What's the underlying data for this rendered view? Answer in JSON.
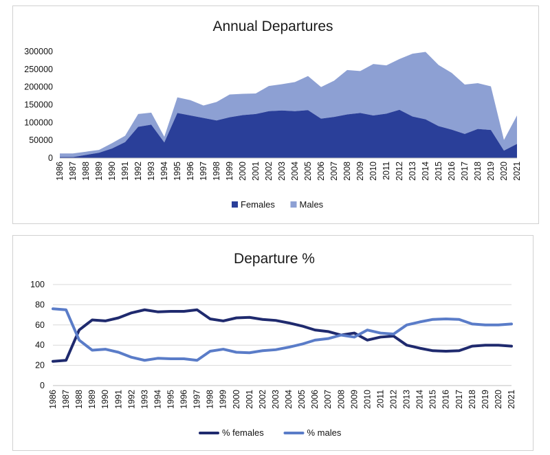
{
  "chart_data": [
    {
      "type": "area",
      "stacked": true,
      "title": "Annual Departures",
      "xlabel": "",
      "ylabel": "",
      "categories": [
        "1986",
        "1987",
        "1988",
        "1989",
        "1990",
        "1991",
        "1992",
        "1993",
        "1994",
        "1995",
        "1996",
        "1997",
        "1998",
        "1999",
        "2000",
        "2001",
        "2002",
        "2003",
        "2004",
        "2005",
        "2006",
        "2007",
        "2008",
        "2009",
        "2010",
        "2011",
        "2012",
        "2013",
        "2014",
        "2015",
        "2016",
        "2017",
        "2018",
        "2019",
        "2020",
        "2021"
      ],
      "yticks": [
        "0",
        "50000",
        "100000",
        "150000",
        "200000",
        "250000",
        "300000"
      ],
      "ylim": [
        0,
        300000
      ],
      "grid": false,
      "legend_position": "bottom",
      "series": [
        {
          "name": "Females",
          "color": "#2a3f99",
          "values": [
            3000,
            3000,
            9000,
            15000,
            27000,
            45000,
            88000,
            94000,
            44000,
            127000,
            120000,
            113000,
            106000,
            115000,
            121000,
            124000,
            132000,
            134000,
            132000,
            135000,
            111000,
            116000,
            123000,
            127000,
            120000,
            125000,
            136000,
            117000,
            109000,
            90000,
            80000,
            68000,
            82000,
            79000,
            21000,
            40000
          ]
        },
        {
          "name": "Males",
          "color": "#8da0d3",
          "values": [
            10000,
            10000,
            9000,
            8000,
            15000,
            18000,
            36000,
            34000,
            16000,
            44000,
            43000,
            35000,
            52000,
            64000,
            60000,
            58000,
            71000,
            74000,
            82000,
            96000,
            89000,
            102000,
            125000,
            118000,
            145000,
            136000,
            143000,
            177000,
            190000,
            172000,
            160000,
            139000,
            129000,
            123000,
            30000,
            80000
          ]
        }
      ]
    },
    {
      "type": "line",
      "title": "Departure %",
      "xlabel": "",
      "ylabel": "",
      "categories": [
        "1986",
        "1987",
        "1988",
        "1989",
        "1990",
        "1991",
        "1992",
        "1993",
        "1994",
        "1995",
        "1996",
        "1997",
        "1998",
        "1999",
        "2000",
        "2001",
        "2002",
        "2003",
        "2004",
        "2005",
        "2006",
        "2007",
        "2008",
        "2009",
        "2010",
        "2011",
        "2012",
        "2013",
        "2014",
        "2015",
        "2016",
        "2017",
        "2018",
        "2019",
        "2020",
        "2021"
      ],
      "yticks": [
        "0",
        "20",
        "40",
        "60",
        "80",
        "100"
      ],
      "ylim": [
        0,
        100
      ],
      "grid": true,
      "legend_position": "bottom",
      "series": [
        {
          "name": "% females",
          "color": "#1f2a6e",
          "values": [
            24,
            25,
            55,
            65,
            64,
            67,
            72,
            75,
            73,
            73.5,
            73.5,
            75,
            66,
            64,
            67,
            67.5,
            65.5,
            64.5,
            62,
            59,
            55,
            53.5,
            50,
            52,
            45,
            48,
            49,
            40,
            37,
            34.5,
            34,
            34.5,
            39,
            40,
            40,
            39
          ]
        },
        {
          "name": "% males",
          "color": "#5a7cc8",
          "values": [
            76,
            75,
            45,
            35,
            36,
            33,
            28,
            25,
            27,
            26.5,
            26.5,
            25,
            34,
            36,
            33,
            32.5,
            34.5,
            35.5,
            38,
            41,
            45,
            46.5,
            50,
            48,
            55,
            52,
            51,
            60,
            63,
            65.5,
            66,
            65.5,
            61,
            60,
            60,
            61
          ]
        }
      ]
    }
  ]
}
